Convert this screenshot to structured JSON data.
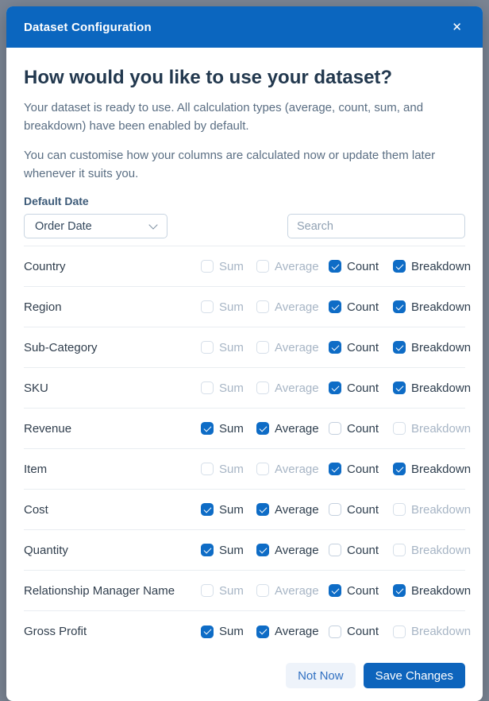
{
  "dialog": {
    "title": "Dataset Configuration",
    "close_icon": "✕"
  },
  "intro": {
    "heading": "How would you like to use your dataset?",
    "paragraph1": "Your dataset is ready to use. All calculation types (average, count, sum, and breakdown) have been enabled by default.",
    "paragraph2": "You can customise how your columns are calculated now or update them later whenever it suits you."
  },
  "controls": {
    "default_date_label": "Default Date",
    "default_date_value": "Order Date",
    "search_placeholder": "Search"
  },
  "columns": {
    "option_names": [
      "Sum",
      "Average",
      "Count",
      "Breakdown"
    ],
    "rows": [
      {
        "label": "Country",
        "options": [
          {
            "name": "Sum",
            "checked": false,
            "disabled": true
          },
          {
            "name": "Average",
            "checked": false,
            "disabled": true
          },
          {
            "name": "Count",
            "checked": true,
            "disabled": false
          },
          {
            "name": "Breakdown",
            "checked": true,
            "disabled": false
          }
        ]
      },
      {
        "label": "Region",
        "options": [
          {
            "name": "Sum",
            "checked": false,
            "disabled": true
          },
          {
            "name": "Average",
            "checked": false,
            "disabled": true
          },
          {
            "name": "Count",
            "checked": true,
            "disabled": false
          },
          {
            "name": "Breakdown",
            "checked": true,
            "disabled": false
          }
        ]
      },
      {
        "label": "Sub-Category",
        "options": [
          {
            "name": "Sum",
            "checked": false,
            "disabled": true
          },
          {
            "name": "Average",
            "checked": false,
            "disabled": true
          },
          {
            "name": "Count",
            "checked": true,
            "disabled": false
          },
          {
            "name": "Breakdown",
            "checked": true,
            "disabled": false
          }
        ]
      },
      {
        "label": "SKU",
        "options": [
          {
            "name": "Sum",
            "checked": false,
            "disabled": true
          },
          {
            "name": "Average",
            "checked": false,
            "disabled": true
          },
          {
            "name": "Count",
            "checked": true,
            "disabled": false
          },
          {
            "name": "Breakdown",
            "checked": true,
            "disabled": false
          }
        ]
      },
      {
        "label": "Revenue",
        "options": [
          {
            "name": "Sum",
            "checked": true,
            "disabled": false
          },
          {
            "name": "Average",
            "checked": true,
            "disabled": false
          },
          {
            "name": "Count",
            "checked": false,
            "disabled": false
          },
          {
            "name": "Breakdown",
            "checked": false,
            "disabled": true
          }
        ]
      },
      {
        "label": "Item",
        "options": [
          {
            "name": "Sum",
            "checked": false,
            "disabled": true
          },
          {
            "name": "Average",
            "checked": false,
            "disabled": true
          },
          {
            "name": "Count",
            "checked": true,
            "disabled": false
          },
          {
            "name": "Breakdown",
            "checked": true,
            "disabled": false
          }
        ]
      },
      {
        "label": "Cost",
        "options": [
          {
            "name": "Sum",
            "checked": true,
            "disabled": false
          },
          {
            "name": "Average",
            "checked": true,
            "disabled": false
          },
          {
            "name": "Count",
            "checked": false,
            "disabled": false
          },
          {
            "name": "Breakdown",
            "checked": false,
            "disabled": true
          }
        ]
      },
      {
        "label": "Quantity",
        "options": [
          {
            "name": "Sum",
            "checked": true,
            "disabled": false
          },
          {
            "name": "Average",
            "checked": true,
            "disabled": false
          },
          {
            "name": "Count",
            "checked": false,
            "disabled": false
          },
          {
            "name": "Breakdown",
            "checked": false,
            "disabled": true
          }
        ]
      },
      {
        "label": "Relationship Manager Name",
        "options": [
          {
            "name": "Sum",
            "checked": false,
            "disabled": true
          },
          {
            "name": "Average",
            "checked": false,
            "disabled": true
          },
          {
            "name": "Count",
            "checked": true,
            "disabled": false
          },
          {
            "name": "Breakdown",
            "checked": true,
            "disabled": false
          }
        ]
      },
      {
        "label": "Gross Profit",
        "options": [
          {
            "name": "Sum",
            "checked": true,
            "disabled": false
          },
          {
            "name": "Average",
            "checked": true,
            "disabled": false
          },
          {
            "name": "Count",
            "checked": false,
            "disabled": false
          },
          {
            "name": "Breakdown",
            "checked": false,
            "disabled": true
          }
        ]
      }
    ]
  },
  "footer": {
    "not_now_label": "Not Now",
    "save_label": "Save Changes"
  },
  "colors": {
    "header_blue": "#0b66bf",
    "checkbox_blue": "#0e6cc6",
    "save_button_blue": "#0d64bc",
    "backdrop_grey": "#7b8594",
    "disabled_text": "#a7b5c5"
  }
}
